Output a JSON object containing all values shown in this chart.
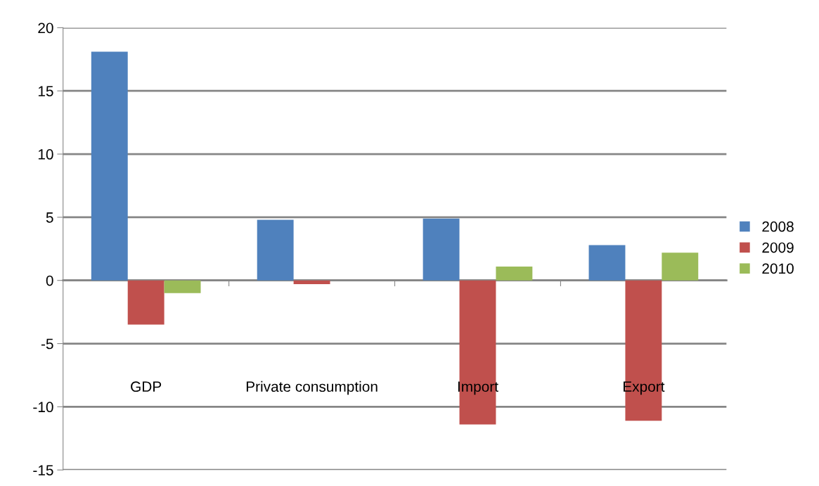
{
  "chart_data": {
    "type": "bar",
    "categories": [
      "GDP",
      "Private consumption",
      "Import",
      "Export"
    ],
    "series": [
      {
        "name": "2008",
        "color": "#4f81bd",
        "values": [
          18.1,
          4.8,
          4.9,
          2.8
        ]
      },
      {
        "name": "2009",
        "color": "#c0504d",
        "values": [
          -3.5,
          -0.3,
          -11.4,
          -11.1
        ]
      },
      {
        "name": "2010",
        "color": "#9bbb59",
        "values": [
          -1.0,
          0,
          1.1,
          2.2
        ]
      }
    ],
    "ylim": [
      -15,
      20
    ],
    "yticks": [
      -15,
      -10,
      -5,
      0,
      5,
      10,
      15,
      20
    ],
    "grid": "y",
    "legend": "right"
  }
}
